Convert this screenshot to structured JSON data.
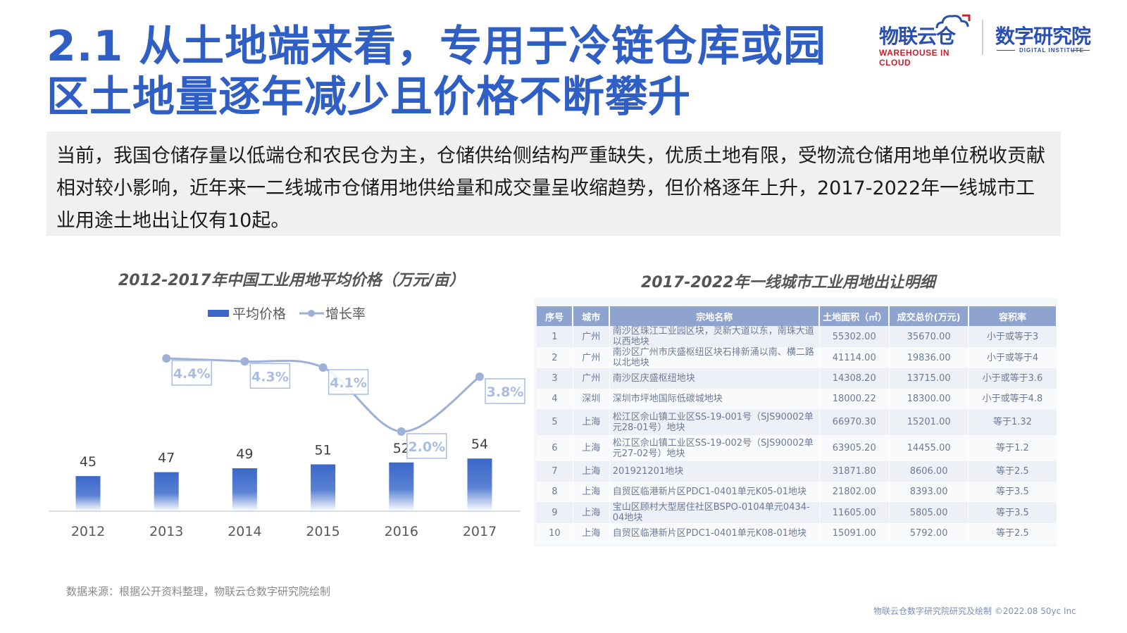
{
  "page": {
    "title": "2.1 从土地端来看，专用于冷链仓库或园区土地量逐年减少且价格不断攀升",
    "intro": "当前，我国仓储存量以低端仓和农民仓为主，仓储供给侧结构严重缺失，优质土地有限，受物流仓储用地单位税收贡献相对较小影响，近年来一二线城市仓储用地供给量和成交量呈收缩趋势，但价格逐年上升，2017-2022年一线城市工业用途土地出让仅有10起。",
    "source": "数据来源：根据公开资料整理，物联云仓数字研究院绘制",
    "footer": "物联云仓数字研究院研究及绘制   ©2022.08 50yc Inc"
  },
  "logos": {
    "left_main": "物联云仓",
    "left_sub": "WAREHOUSE IN CLOUD",
    "right_main": "数字研究院",
    "right_sub": "DIGITAL INSTITUTE"
  },
  "colors": {
    "title": "#2f5ec4",
    "bar": "#3b67c7",
    "line": "#9db1d8",
    "label_box": "#a9bde1",
    "table_header": "#8fa3cf"
  },
  "chart_data": {
    "type": "bar",
    "title": "2012-2017年中国工业用地平均价格（万元/亩）",
    "categories": [
      "2012",
      "2013",
      "2014",
      "2015",
      "2016",
      "2017"
    ],
    "series": [
      {
        "name": "平均价格",
        "type": "bar",
        "values": [
          45,
          47,
          49,
          51,
          52,
          54
        ],
        "labels": [
          "45",
          "47",
          "49",
          "51",
          "52",
          "54"
        ]
      },
      {
        "name": "增长率",
        "type": "line",
        "x": [
          "2013",
          "2014",
          "2015",
          "2016",
          "2017"
        ],
        "values": [
          4.4,
          4.3,
          4.1,
          2.0,
          3.8
        ],
        "labels": [
          "4.4%",
          "4.3%",
          "4.1%",
          "2.0%",
          "3.8%"
        ]
      }
    ],
    "legend_position": "top-center",
    "grid": false
  },
  "table": {
    "title": "2017-2022年一线城市工业用地出让明细",
    "headers": [
      "序号",
      "城市",
      "宗地名称",
      "土地面积（㎡）",
      "成交总价(万元)",
      "容积率"
    ],
    "rows": [
      [
        "1",
        "广州",
        "南沙区珠江工业园区块，灵新大道以东，南珠大道以西地块",
        "55302.00",
        "35670.00",
        "小于或等于3"
      ],
      [
        "2",
        "广州",
        "南沙区广州市庆盛枢纽区块石排新涌以南、横二路以北地块",
        "41114.00",
        "19836.00",
        "小于或等于4"
      ],
      [
        "3",
        "广州",
        "南沙区庆盛枢纽地块",
        "14308.20",
        "13715.00",
        "小于或等于3.6"
      ],
      [
        "4",
        "深圳",
        "深圳市坪地国际低碳城地块",
        "18000.22",
        "18300.00",
        "小于或等于4.8"
      ],
      [
        "5",
        "上海",
        "松江区佘山镇工业区SS-19-001号（SJS90002单元28-01号）地块",
        "66970.30",
        "15201.00",
        "等于1.32"
      ],
      [
        "6",
        "上海",
        "松江区佘山镇工业区SS-19-002号（SJS90002单元27-02号）地块",
        "63905.20",
        "14455.00",
        "等于1.2"
      ],
      [
        "7",
        "上海",
        "201921201地块",
        "31871.80",
        "8606.00",
        "等于2.5"
      ],
      [
        "8",
        "上海",
        "自贸区临港新片区PDC1-0401单元K05-01地块",
        "21802.00",
        "8393.00",
        "等于3.5"
      ],
      [
        "9",
        "上海",
        "宝山区顾村大型居住社区BSPO-0104单元0434-04地块",
        "11605.00",
        "5805.00",
        "等于3.5"
      ],
      [
        "10",
        "上海",
        "自贸区临港新片区PDC1-0401单元K08-01地块",
        "15091.00",
        "5792.00",
        "等于2.5"
      ]
    ]
  }
}
